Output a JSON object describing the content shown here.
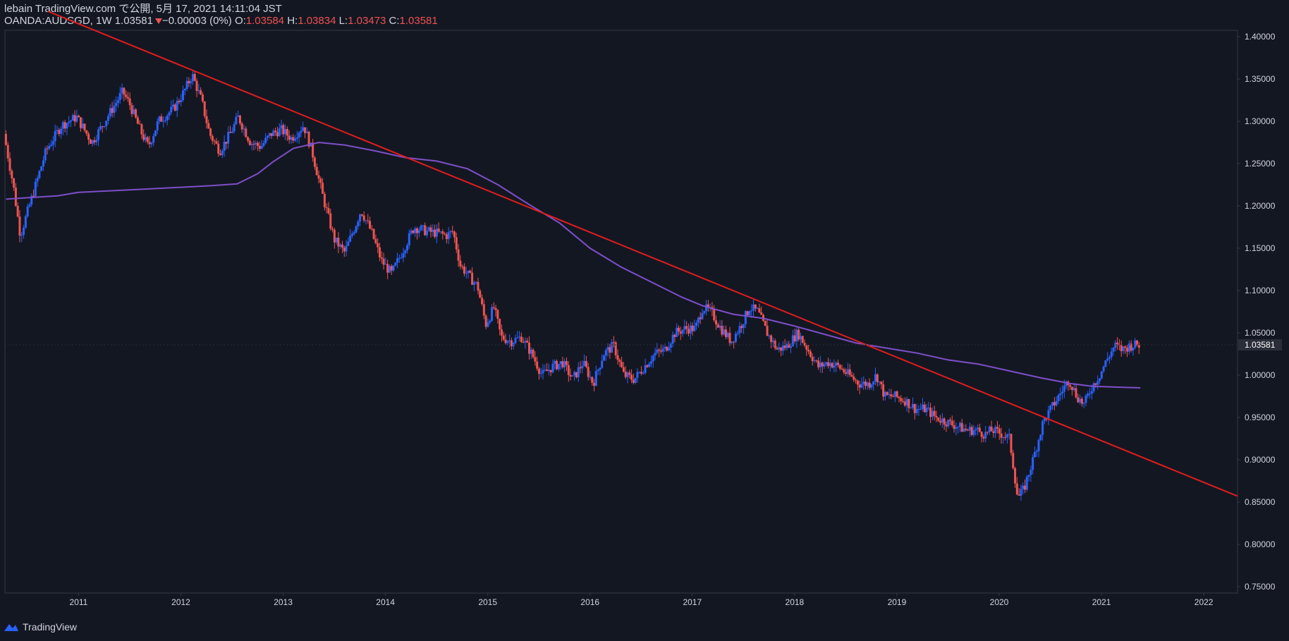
{
  "header": {
    "line1": "lebain TradingView.com で公開, 5月 17, 2021 14:11:04 JST",
    "symbol": "OANDA:AUDSGD, 1W",
    "last": "1.03581",
    "change": "−0.00003 (0%)",
    "o_label": "O:",
    "o_val": "1.03584",
    "h_label": "H:",
    "h_val": "1.03834",
    "l_label": "L:",
    "l_val": "1.03473",
    "c_label": "C:",
    "c_val": "1.03581"
  },
  "footer": {
    "brand": "TradingView",
    "brand_icon": "tradingview-logo-icon"
  },
  "colors": {
    "background": "#131722",
    "up": "#2962ff",
    "down": "#ef5350",
    "trendline": "#e11d1d",
    "ma": "#7e4fc9",
    "axis_border": "#363a45",
    "text": "#d1d4dc"
  },
  "chart_data": {
    "type": "candlestick",
    "interval": "1W",
    "symbol": "OANDA:AUDSGD",
    "y_ticks": [
      "1.40000",
      "1.35000",
      "1.30000",
      "1.25000",
      "1.20000",
      "1.15000",
      "1.10000",
      "1.05000",
      "1.00000",
      "0.95000",
      "0.90000",
      "0.85000",
      "0.80000",
      "0.75000"
    ],
    "x_ticks": [
      "2011",
      "2012",
      "2013",
      "2014",
      "2015",
      "2016",
      "2017",
      "2018",
      "2019",
      "2020",
      "2021",
      "2022"
    ],
    "ylim": [
      0.7425,
      1.4075
    ],
    "xlim": [
      2010.28,
      2022.33
    ],
    "last_price_label": "1.03581",
    "last_price": 1.03581,
    "price_path": [
      [
        2010.29,
        1.285
      ],
      [
        2010.38,
        1.225
      ],
      [
        2010.45,
        1.165
      ],
      [
        2010.55,
        1.205
      ],
      [
        2010.7,
        1.265
      ],
      [
        2010.85,
        1.295
      ],
      [
        2011.0,
        1.305
      ],
      [
        2011.15,
        1.275
      ],
      [
        2011.3,
        1.305
      ],
      [
        2011.45,
        1.335
      ],
      [
        2011.52,
        1.32
      ],
      [
        2011.62,
        1.29
      ],
      [
        2011.7,
        1.27
      ],
      [
        2011.8,
        1.3
      ],
      [
        2011.95,
        1.315
      ],
      [
        2012.05,
        1.335
      ],
      [
        2012.13,
        1.355
      ],
      [
        2012.22,
        1.325
      ],
      [
        2012.3,
        1.285
      ],
      [
        2012.4,
        1.265
      ],
      [
        2012.5,
        1.285
      ],
      [
        2012.58,
        1.305
      ],
      [
        2012.7,
        1.275
      ],
      [
        2012.8,
        1.27
      ],
      [
        2012.9,
        1.285
      ],
      [
        2013.0,
        1.29
      ],
      [
        2013.1,
        1.28
      ],
      [
        2013.22,
        1.295
      ],
      [
        2013.3,
        1.265
      ],
      [
        2013.42,
        1.205
      ],
      [
        2013.52,
        1.16
      ],
      [
        2013.62,
        1.145
      ],
      [
        2013.72,
        1.175
      ],
      [
        2013.78,
        1.195
      ],
      [
        2013.88,
        1.17
      ],
      [
        2013.98,
        1.135
      ],
      [
        2014.08,
        1.12
      ],
      [
        2014.2,
        1.15
      ],
      [
        2014.3,
        1.175
      ],
      [
        2014.42,
        1.17
      ],
      [
        2014.52,
        1.168
      ],
      [
        2014.62,
        1.165
      ],
      [
        2014.68,
        1.17
      ],
      [
        2014.75,
        1.13
      ],
      [
        2014.85,
        1.115
      ],
      [
        2014.92,
        1.105
      ],
      [
        2015.0,
        1.06
      ],
      [
        2015.08,
        1.08
      ],
      [
        2015.15,
        1.045
      ],
      [
        2015.25,
        1.04
      ],
      [
        2015.35,
        1.045
      ],
      [
        2015.45,
        1.025
      ],
      [
        2015.55,
        1.0
      ],
      [
        2015.65,
        1.01
      ],
      [
        2015.75,
        1.015
      ],
      [
        2015.85,
        0.995
      ],
      [
        2015.95,
        1.015
      ],
      [
        2016.05,
        0.99
      ],
      [
        2016.15,
        1.025
      ],
      [
        2016.25,
        1.035
      ],
      [
        2016.35,
        1.0
      ],
      [
        2016.45,
        0.995
      ],
      [
        2016.55,
        1.01
      ],
      [
        2016.65,
        1.025
      ],
      [
        2016.75,
        1.03
      ],
      [
        2016.85,
        1.05
      ],
      [
        2016.95,
        1.055
      ],
      [
        2017.05,
        1.055
      ],
      [
        2017.12,
        1.08
      ],
      [
        2017.2,
        1.075
      ],
      [
        2017.3,
        1.055
      ],
      [
        2017.4,
        1.04
      ],
      [
        2017.5,
        1.06
      ],
      [
        2017.58,
        1.08
      ],
      [
        2017.66,
        1.075
      ],
      [
        2017.75,
        1.05
      ],
      [
        2017.85,
        1.03
      ],
      [
        2017.95,
        1.035
      ],
      [
        2018.05,
        1.05
      ],
      [
        2018.15,
        1.03
      ],
      [
        2018.25,
        1.01
      ],
      [
        2018.35,
        1.015
      ],
      [
        2018.45,
        1.01
      ],
      [
        2018.55,
        1.0
      ],
      [
        2018.65,
        0.99
      ],
      [
        2018.75,
        0.99
      ],
      [
        2018.82,
        1.0
      ],
      [
        2018.9,
        0.975
      ],
      [
        2019.0,
        0.975
      ],
      [
        2019.1,
        0.97
      ],
      [
        2019.2,
        0.96
      ],
      [
        2019.3,
        0.96
      ],
      [
        2019.4,
        0.95
      ],
      [
        2019.5,
        0.945
      ],
      [
        2019.6,
        0.94
      ],
      [
        2019.7,
        0.935
      ],
      [
        2019.8,
        0.935
      ],
      [
        2019.88,
        0.93
      ],
      [
        2019.95,
        0.935
      ],
      [
        2020.05,
        0.93
      ],
      [
        2020.12,
        0.925
      ],
      [
        2020.2,
        0.855
      ],
      [
        2020.26,
        0.865
      ],
      [
        2020.35,
        0.9
      ],
      [
        2020.45,
        0.945
      ],
      [
        2020.55,
        0.965
      ],
      [
        2020.65,
        0.985
      ],
      [
        2020.7,
        0.995
      ],
      [
        2020.78,
        0.975
      ],
      [
        2020.85,
        0.965
      ],
      [
        2020.92,
        0.985
      ],
      [
        2021.0,
        1.0
      ],
      [
        2021.08,
        1.02
      ],
      [
        2021.15,
        1.035
      ],
      [
        2021.22,
        1.03
      ],
      [
        2021.3,
        1.035
      ],
      [
        2021.38,
        1.036
      ]
    ],
    "ma_line": [
      [
        2010.29,
        1.208
      ],
      [
        2010.8,
        1.212
      ],
      [
        2011.0,
        1.216
      ],
      [
        2011.5,
        1.219
      ],
      [
        2012.0,
        1.222
      ],
      [
        2012.3,
        1.224
      ],
      [
        2012.55,
        1.226
      ],
      [
        2012.75,
        1.238
      ],
      [
        2012.9,
        1.252
      ],
      [
        2013.1,
        1.268
      ],
      [
        2013.35,
        1.275
      ],
      [
        2013.6,
        1.272
      ],
      [
        2013.9,
        1.265
      ],
      [
        2014.2,
        1.257
      ],
      [
        2014.5,
        1.253
      ],
      [
        2014.8,
        1.244
      ],
      [
        2015.1,
        1.225
      ],
      [
        2015.4,
        1.202
      ],
      [
        2015.7,
        1.18
      ],
      [
        2016.0,
        1.15
      ],
      [
        2016.3,
        1.128
      ],
      [
        2016.6,
        1.11
      ],
      [
        2016.9,
        1.092
      ],
      [
        2017.1,
        1.082
      ],
      [
        2017.4,
        1.072
      ],
      [
        2017.7,
        1.067
      ],
      [
        2018.0,
        1.058
      ],
      [
        2018.3,
        1.048
      ],
      [
        2018.6,
        1.038
      ],
      [
        2018.9,
        1.032
      ],
      [
        2019.2,
        1.026
      ],
      [
        2019.5,
        1.018
      ],
      [
        2019.8,
        1.013
      ],
      [
        2020.1,
        1.005
      ],
      [
        2020.4,
        0.997
      ],
      [
        2020.7,
        0.99
      ],
      [
        2020.9,
        0.987
      ],
      [
        2021.1,
        0.986
      ],
      [
        2021.38,
        0.985
      ]
    ],
    "trend_line": [
      [
        2010.7,
        1.43
      ],
      [
        2022.33,
        0.857
      ]
    ]
  }
}
